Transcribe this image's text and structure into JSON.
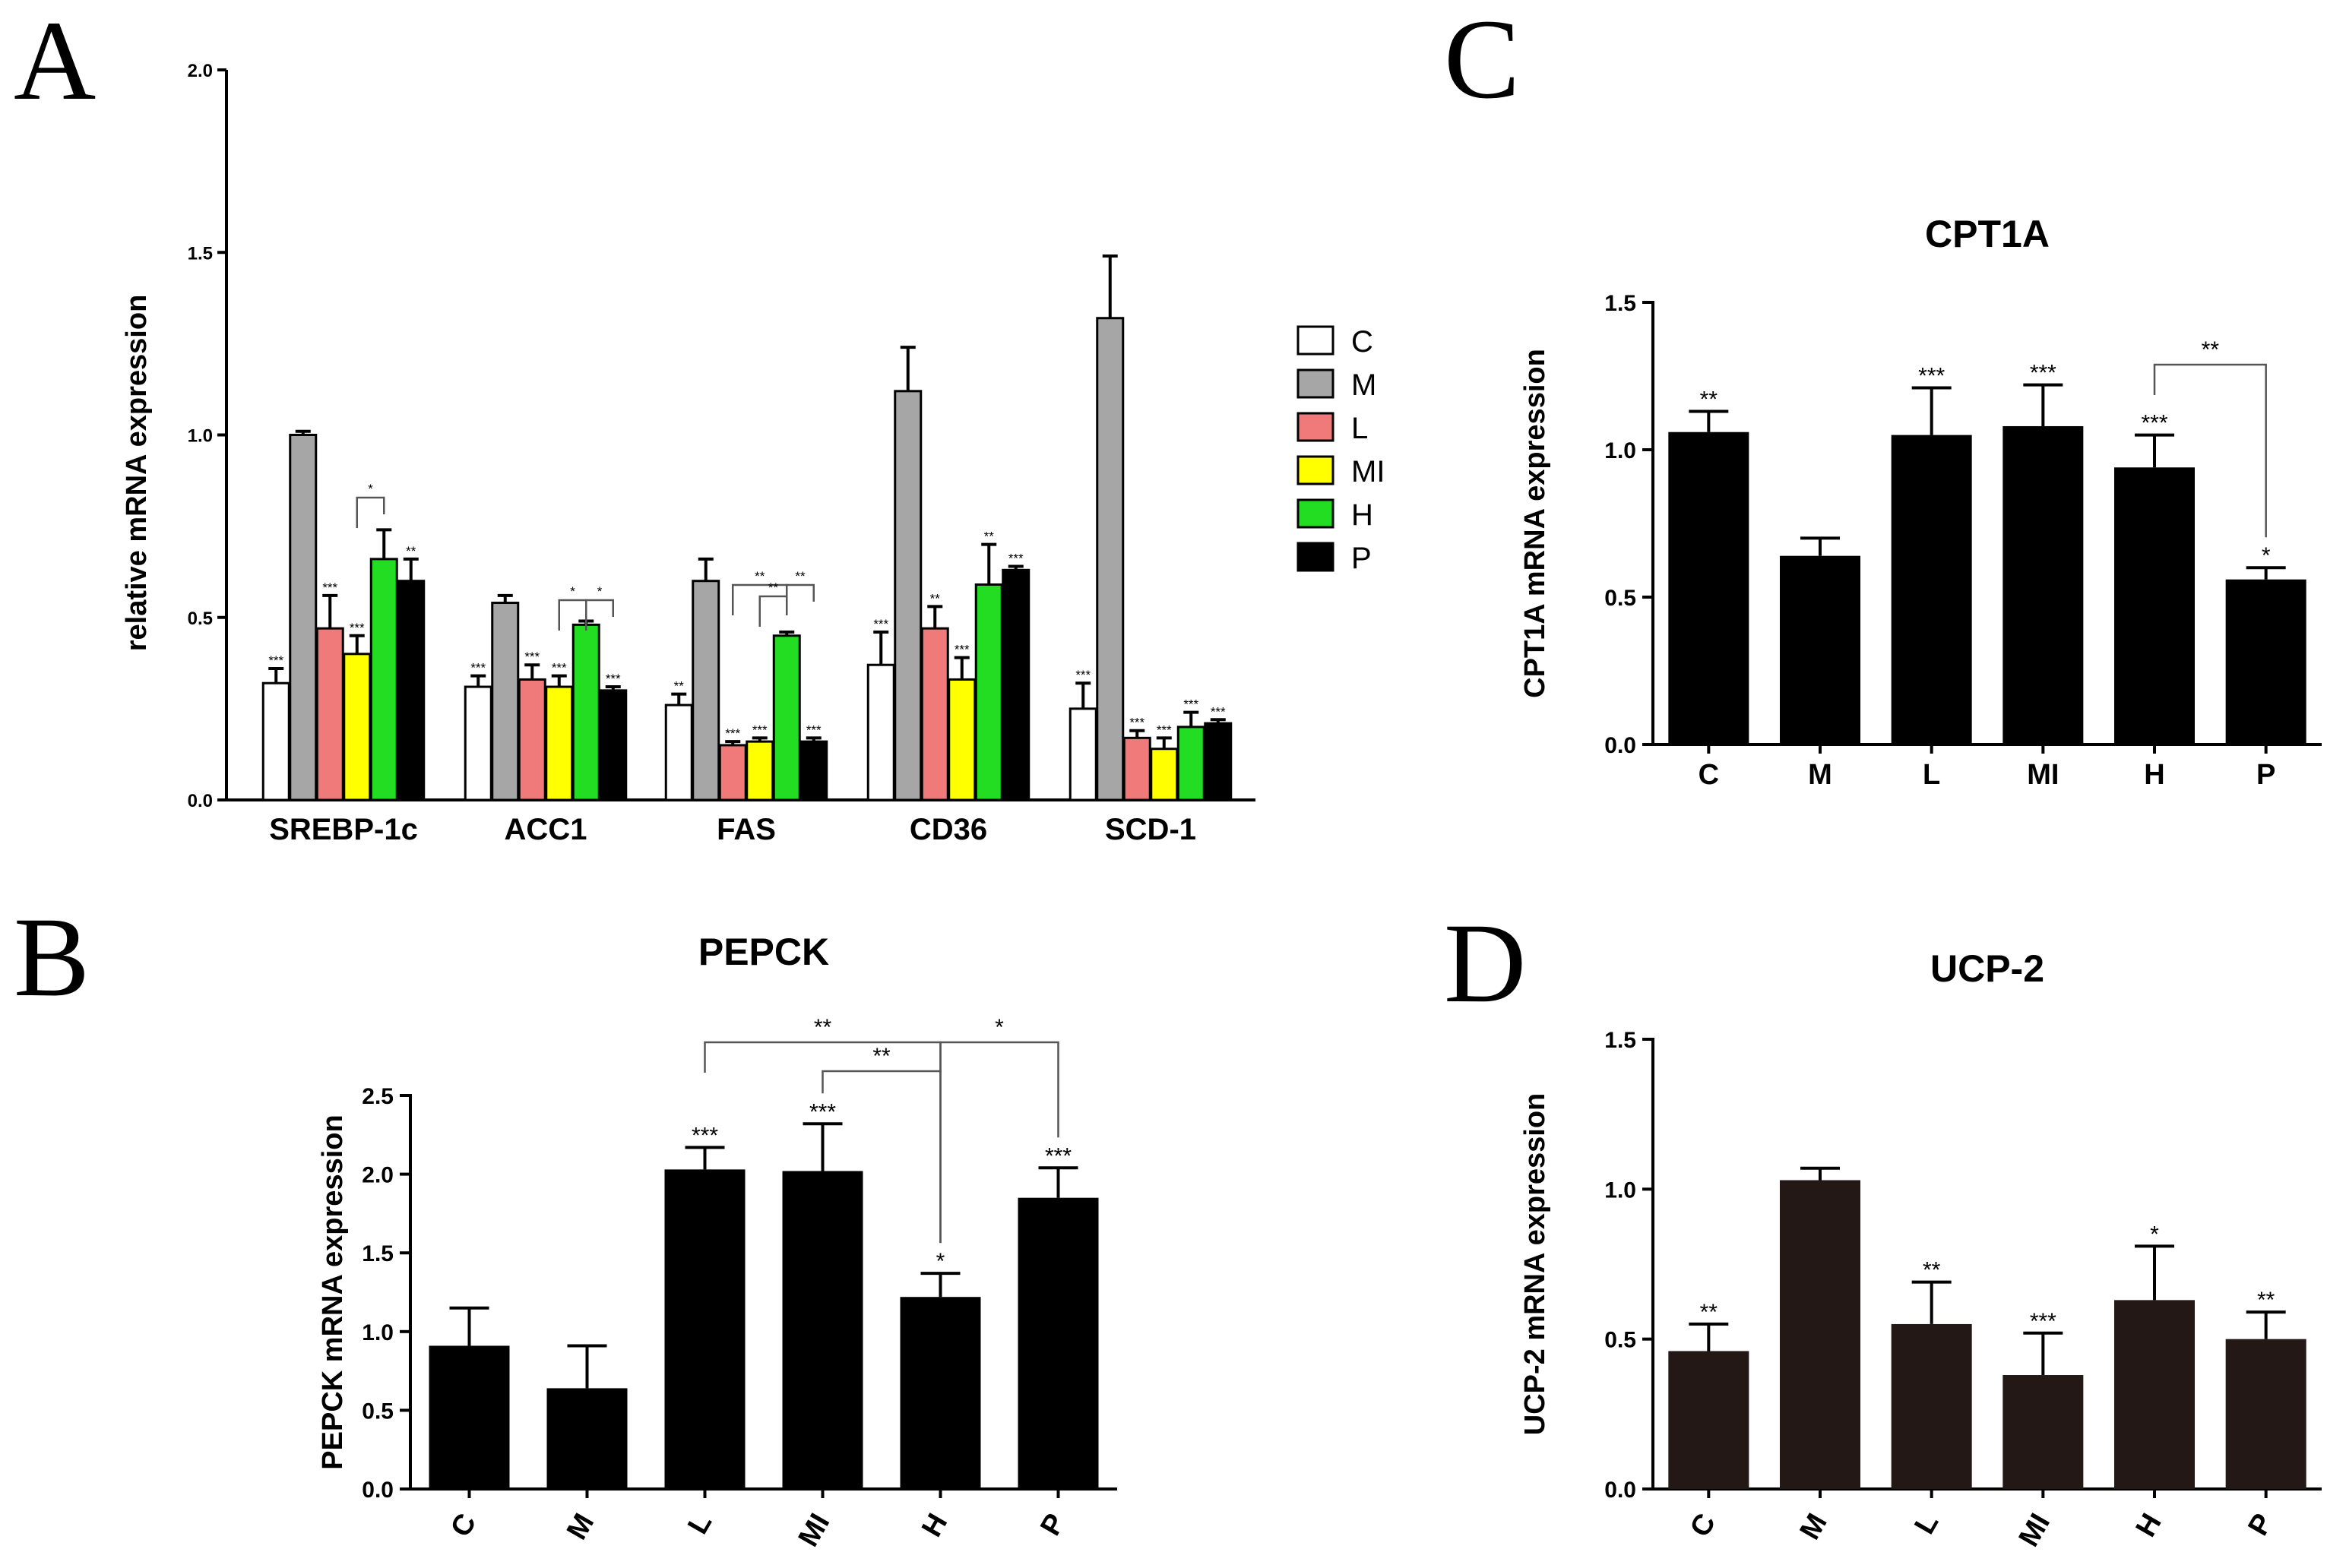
{
  "chart_data": [
    {
      "panel": "A",
      "type": "bar",
      "title": "",
      "ylabel": "relative mRNA expression",
      "ylim": [
        0,
        2.0
      ],
      "yticks": [
        "0.0",
        "0.5",
        "1.0",
        "1.5",
        "2.0"
      ],
      "categories": [
        "SREBP-1c",
        "ACC1",
        "FAS",
        "CD36",
        "SCD-1"
      ],
      "legend_position": "right",
      "series": [
        {
          "name": "C",
          "color": "#ffffff",
          "values": [
            0.32,
            0.31,
            0.26,
            0.37,
            0.25
          ],
          "errors": [
            0.04,
            0.03,
            0.03,
            0.09,
            0.07
          ],
          "sig": [
            "***",
            "***",
            "**",
            "***",
            "***"
          ]
        },
        {
          "name": "M",
          "color": "#a6a6a6",
          "values": [
            1.0,
            0.54,
            0.6,
            1.12,
            1.32
          ],
          "errors": [
            0.01,
            0.02,
            0.06,
            0.12,
            0.17
          ],
          "sig": [
            "",
            "",
            "",
            "",
            ""
          ]
        },
        {
          "name": "L",
          "color": "#f07a7a",
          "values": [
            0.47,
            0.33,
            0.15,
            0.47,
            0.17
          ],
          "errors": [
            0.09,
            0.04,
            0.01,
            0.06,
            0.02
          ],
          "sig": [
            "***",
            "***",
            "***",
            "**",
            "***"
          ]
        },
        {
          "name": "MI",
          "color": "#ffff00",
          "values": [
            0.4,
            0.31,
            0.16,
            0.33,
            0.14
          ],
          "errors": [
            0.05,
            0.03,
            0.01,
            0.06,
            0.03
          ],
          "sig": [
            "***",
            "***",
            "***",
            "***",
            "***"
          ]
        },
        {
          "name": "H",
          "color": "#22dd22",
          "values": [
            0.66,
            0.48,
            0.45,
            0.59,
            0.2
          ],
          "errors": [
            0.08,
            0.01,
            0.01,
            0.11,
            0.04
          ],
          "sig": [
            "",
            "",
            "",
            "**",
            "***"
          ]
        },
        {
          "name": "P",
          "color": "#000000",
          "values": [
            0.6,
            0.3,
            0.16,
            0.63,
            0.21
          ],
          "errors": [
            0.06,
            0.01,
            0.01,
            0.01,
            0.01
          ],
          "sig": [
            "**",
            "***",
            "***",
            "***",
            "***"
          ]
        }
      ],
      "brackets": [
        {
          "category": 0,
          "from": "MI",
          "to": "H",
          "label": "*"
        },
        {
          "category": 1,
          "from": "MI",
          "to": "H",
          "label": "*"
        },
        {
          "category": 1,
          "from": "H",
          "to": "P",
          "label": "*"
        },
        {
          "category": 2,
          "from": "L",
          "to": "H",
          "label": "**"
        },
        {
          "category": 2,
          "from": "MI",
          "to": "H",
          "label": "**"
        },
        {
          "category": 2,
          "from": "H",
          "to": "P",
          "label": "**"
        }
      ]
    },
    {
      "panel": "B",
      "type": "bar",
      "title": "PEPCK",
      "ylabel": "PEPCK mRNA expression",
      "ylim": [
        0,
        2.5
      ],
      "yticks": [
        "0.0",
        "0.5",
        "1.0",
        "1.5",
        "2.0",
        "2.5"
      ],
      "categories": [
        "C",
        "M",
        "L",
        "MI",
        "H",
        "P"
      ],
      "values": [
        0.91,
        0.64,
        2.03,
        2.02,
        1.22,
        1.85
      ],
      "errors": [
        0.24,
        0.27,
        0.14,
        0.3,
        0.15,
        0.19
      ],
      "sig": [
        "",
        "",
        "***",
        "***",
        "*",
        "***"
      ],
      "bar_color": "#000000",
      "rotated_labels": true,
      "brackets": [
        {
          "from": "L",
          "to": "H",
          "label": "**"
        },
        {
          "from": "MI",
          "to": "H",
          "label": "**"
        },
        {
          "from": "H",
          "to": "P",
          "label": "*"
        }
      ]
    },
    {
      "panel": "C",
      "type": "bar",
      "title": "CPT1A",
      "ylabel": "CPT1A mRNA expression",
      "ylim": [
        0,
        1.5
      ],
      "yticks": [
        "0.0",
        "0.5",
        "1.0",
        "1.5"
      ],
      "categories": [
        "C",
        "M",
        "L",
        "MI",
        "H",
        "P"
      ],
      "values": [
        1.06,
        0.64,
        1.05,
        1.08,
        0.94,
        0.56
      ],
      "errors": [
        0.07,
        0.06,
        0.16,
        0.14,
        0.11,
        0.04
      ],
      "sig": [
        "**",
        "",
        "***",
        "***",
        "***",
        "*"
      ],
      "bar_color": "#000000",
      "rotated_labels": false,
      "brackets": [
        {
          "from": "H",
          "to": "P",
          "label": "**"
        }
      ]
    },
    {
      "panel": "D",
      "type": "bar",
      "title": "UCP-2",
      "ylabel": "UCP-2 mRNA expression",
      "ylim": [
        0,
        1.5
      ],
      "yticks": [
        "0.0",
        "0.5",
        "1.0",
        "1.5"
      ],
      "categories": [
        "C",
        "M",
        "L",
        "MI",
        "H",
        "P"
      ],
      "values": [
        0.46,
        1.03,
        0.55,
        0.38,
        0.63,
        0.5
      ],
      "errors": [
        0.09,
        0.04,
        0.14,
        0.14,
        0.18,
        0.09
      ],
      "sig": [
        "**",
        "",
        "**",
        "***",
        "*",
        "**"
      ],
      "bar_color": "#231815",
      "rotated_labels": true,
      "brackets": []
    }
  ]
}
